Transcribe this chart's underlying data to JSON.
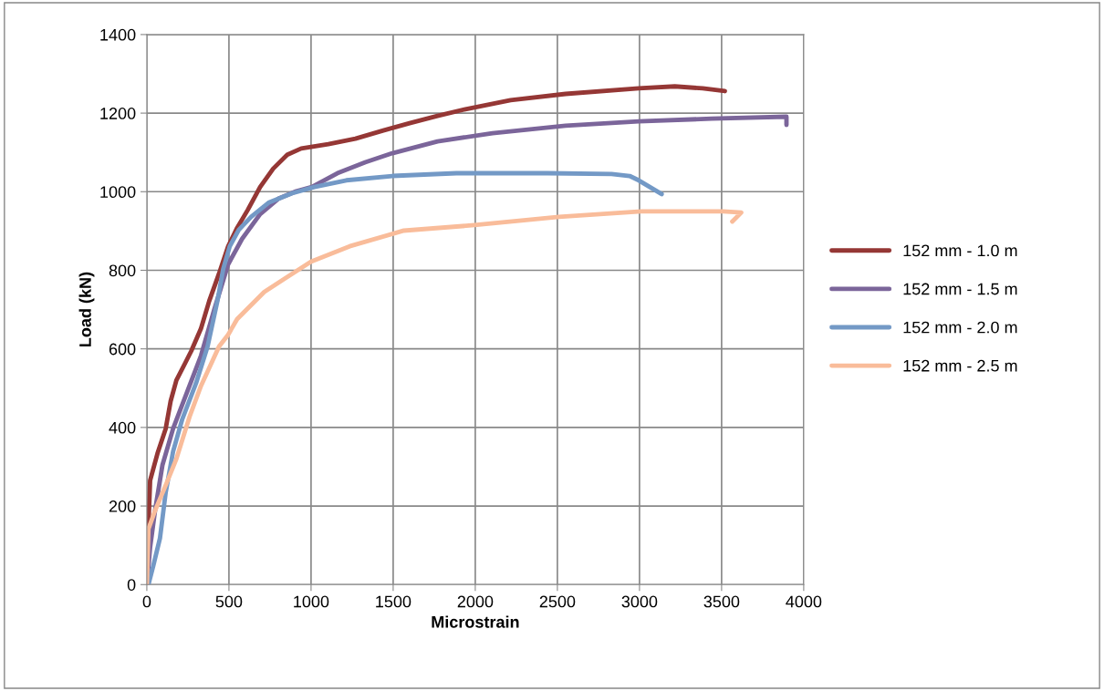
{
  "chart_data": {
    "type": "line",
    "xlabel": "Microstrain",
    "ylabel": "Load (kN)",
    "xlim": [
      0,
      4000
    ],
    "xticks": [
      0,
      500,
      1000,
      1500,
      2000,
      2500,
      3000,
      3500,
      4000
    ],
    "ylim": [
      0,
      1400
    ],
    "yticks": [
      0,
      200,
      400,
      600,
      800,
      1000,
      1200,
      1400
    ],
    "grid": true,
    "legend": "right",
    "marker": "none",
    "line_style": "solid",
    "series": [
      {
        "name": "152 mm - 1.0 m",
        "color": "#953735",
        "x": [
          0,
          10,
          20,
          65,
          115,
          145,
          180,
          235,
          270,
          330,
          380,
          440,
          495,
          550,
          615,
          690,
          770,
          855,
          940,
          1105,
          1270,
          1440,
          1605,
          1770,
          1940,
          2215,
          2550,
          2995,
          3215,
          3385,
          3520
        ],
        "values": [
          0,
          150,
          265,
          334,
          397,
          467,
          520,
          565,
          594,
          652,
          722,
          792,
          861,
          908,
          954,
          1012,
          1059,
          1094,
          1110,
          1121,
          1135,
          1156,
          1175,
          1193,
          1210,
          1233,
          1249,
          1263,
          1268,
          1263,
          1256
        ]
      },
      {
        "name": "152 mm - 1.5 m",
        "color": "#7b659a",
        "x": [
          0,
          20,
          50,
          95,
          160,
          245,
          330,
          410,
          495,
          580,
          690,
          800,
          910,
          1005,
          1160,
          1330,
          1495,
          1770,
          2105,
          2550,
          2995,
          3440,
          3895,
          3895
        ],
        "values": [
          0,
          95,
          188,
          304,
          397,
          490,
          583,
          699,
          815,
          880,
          943,
          982,
          1001,
          1012,
          1047,
          1075,
          1098,
          1128,
          1149,
          1168,
          1179,
          1186,
          1191,
          1170
        ]
      },
      {
        "name": "152 mm - 2.0 m",
        "color": "#7399c6",
        "x": [
          10,
          40,
          80,
          115,
          160,
          215,
          300,
          370,
          430,
          465,
          505,
          560,
          635,
          745,
          885,
          1020,
          1215,
          1495,
          1885,
          2440,
          2830,
          2940,
          2995,
          3135
        ],
        "values": [
          0,
          49,
          118,
          235,
          339,
          420,
          513,
          606,
          722,
          803,
          861,
          903,
          936,
          973,
          996,
          1012,
          1029,
          1040,
          1047,
          1047,
          1045,
          1040,
          1029,
          994
        ]
      },
      {
        "name": "152 mm - 2.5 m",
        "color": "#f9bc9a",
        "x": [
          0,
          10,
          50,
          120,
          180,
          260,
          330,
          440,
          495,
          550,
          715,
          830,
          1000,
          1235,
          1565,
          1995,
          2510,
          3010,
          3510,
          3620,
          3565
        ],
        "values": [
          0,
          142,
          188,
          258,
          320,
          427,
          506,
          606,
          636,
          676,
          745,
          776,
          822,
          861,
          901,
          915,
          936,
          950,
          950,
          947,
          924
        ]
      }
    ]
  }
}
